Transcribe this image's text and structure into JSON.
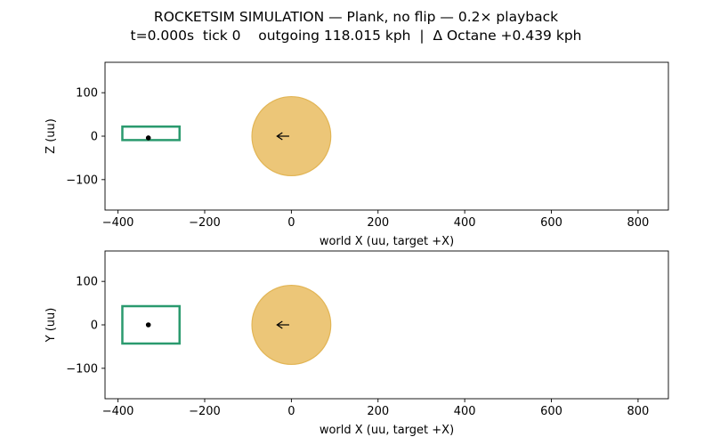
{
  "title": {
    "line1": "ROCKETSIM SIMULATION — Plank, no flip — 0.2× playback",
    "line2": "t=0.000s  tick 0    outgoing 118.015 kph  |  Δ Octane +0.439 kph"
  },
  "colors": {
    "car_outline": "#2a9a6e",
    "ball_fill": "#ecc678",
    "ball_edge": "#e2b555",
    "marker": "#000000"
  },
  "chart_data": [
    {
      "type": "scatter",
      "panel": "side-view",
      "xlabel": "world X (uu, target +X)",
      "ylabel": "Z (uu)",
      "xlim": [
        -430,
        870
      ],
      "ylim": [
        -170,
        170
      ],
      "xticks": [
        -400,
        -200,
        0,
        200,
        400,
        600,
        800
      ],
      "xtick_labels": [
        "−400",
        "−200",
        "0",
        "200",
        "400",
        "600",
        "800"
      ],
      "yticks": [
        100,
        0,
        -100
      ],
      "ytick_labels": [
        "100",
        "0",
        "−100"
      ],
      "car_box": {
        "x0": -390,
        "x1": -258,
        "y0": -9,
        "y1": 22
      },
      "car_center": {
        "x": -330,
        "y": -4
      },
      "ball": {
        "x": 0,
        "y": 0,
        "radius": 91
      },
      "velocity_arrow": {
        "x_from": -5,
        "x_to": -33,
        "y": 0
      }
    },
    {
      "type": "scatter",
      "panel": "top-view",
      "xlabel": "world X (uu, target +X)",
      "ylabel": "Y (uu)",
      "xlim": [
        -430,
        870
      ],
      "ylim": [
        -170,
        170
      ],
      "xticks": [
        -400,
        -200,
        0,
        200,
        400,
        600,
        800
      ],
      "xtick_labels": [
        "−400",
        "−200",
        "0",
        "200",
        "400",
        "600",
        "800"
      ],
      "yticks": [
        100,
        0,
        -100
      ],
      "ytick_labels": [
        "100",
        "0",
        "−100"
      ],
      "car_box": {
        "x0": -390,
        "x1": -258,
        "y0": -43,
        "y1": 43
      },
      "car_center": {
        "x": -330,
        "y": 0
      },
      "ball": {
        "x": 0,
        "y": 0,
        "radius": 91
      },
      "velocity_arrow": {
        "x_from": -5,
        "x_to": -33,
        "y": 0
      }
    }
  ]
}
